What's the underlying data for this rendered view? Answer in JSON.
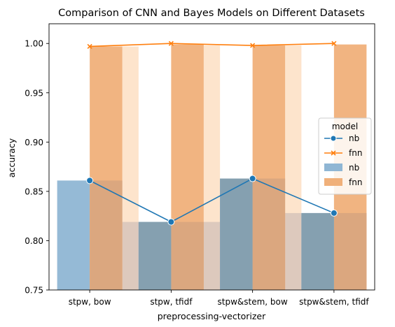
{
  "chart_data": {
    "type": "bar",
    "title": "Comparison of CNN and Bayes Models on Different Datasets",
    "xlabel": "preprocessing-vectorizer",
    "ylabel": "accuracy",
    "categories": [
      "stpw, bow",
      "stpw, tfidf",
      "stpw&stem, bow",
      "stpw&stem, tfidf"
    ],
    "ylim": [
      0.75,
      1.02
    ],
    "yticks": [
      0.75,
      0.8,
      0.85,
      0.9,
      0.95,
      1.0
    ],
    "ytick_labels": [
      "0.75",
      "0.80",
      "0.85",
      "0.90",
      "0.95",
      "1.00"
    ],
    "grid": false,
    "bar_series": [
      {
        "name": "nb",
        "color": "#8fb6d4",
        "values": [
          0.861,
          0.819,
          0.863,
          0.828
        ]
      },
      {
        "name": "fnn",
        "color": "#f0b07a",
        "values": [
          0.997,
          0.999,
          0.998,
          0.999
        ]
      }
    ],
    "line_series": [
      {
        "name": "nb",
        "color": "#1f77b4",
        "marker": "circle",
        "values": [
          0.861,
          0.819,
          0.863,
          0.828
        ]
      },
      {
        "name": "fnn",
        "color": "#ff7f0e",
        "marker": "x",
        "values": [
          0.997,
          1.0,
          0.998,
          1.0
        ]
      }
    ],
    "legend": {
      "title": "model",
      "placement": "center-right",
      "entries": [
        {
          "label": "nb",
          "kind": "line",
          "color": "#1f77b4",
          "marker": "circle"
        },
        {
          "label": "fnn",
          "kind": "line",
          "color": "#ff7f0e",
          "marker": "x"
        },
        {
          "label": "nb",
          "kind": "patch",
          "color": "#8fb6d4"
        },
        {
          "label": "fnn",
          "kind": "patch",
          "color": "#f0b07a"
        }
      ]
    }
  }
}
